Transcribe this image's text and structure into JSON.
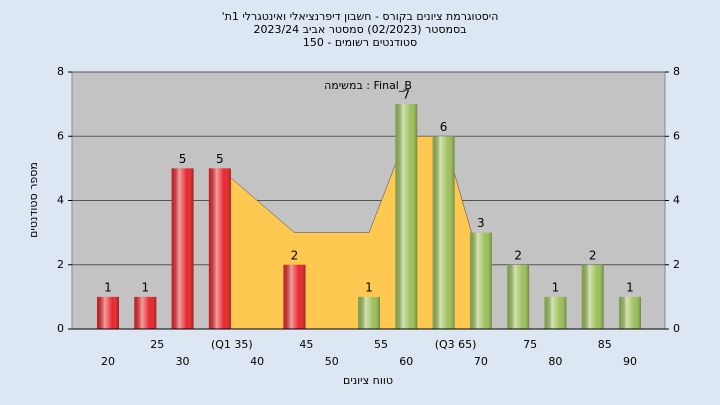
{
  "chart_data": {
    "type": "bar",
    "title": [
      "'היסטוגרמת ציונים בקורס - חשבון דיפרנציאלי ואינטגרלי 1ת",
      "בסמסטר  (02/2023)  סמסטר אביב 2023/24",
      "סטודנטים רשומים - 150"
    ],
    "annotation": "במשימה : Final_B",
    "x_label": "טווח ציונים",
    "y_label": "מספר סטודנטים",
    "categories": [
      "20",
      "25",
      "30",
      "(Q1 35)",
      "40",
      "45",
      "50",
      "55",
      "60",
      "(Q3 65)",
      "70",
      "75",
      "80",
      "85",
      "90"
    ],
    "values": [
      1,
      1,
      5,
      5,
      0,
      2,
      0,
      1,
      7,
      6,
      3,
      2,
      1,
      2,
      1
    ],
    "colors": [
      "#e8262b",
      "#e8262b",
      "#e8262b",
      "#e8262b",
      "#e8262b",
      "#e8262b",
      "#9dc05a",
      "#9dc05a",
      "#9dc05a",
      "#9dc05a",
      "#9dc05a",
      "#9dc05a",
      "#9dc05a",
      "#9dc05a",
      "#9dc05a"
    ],
    "area": {
      "color": "#ffc850",
      "values": [
        null,
        null,
        null,
        5,
        4,
        3,
        3,
        3,
        6,
        6,
        2,
        null,
        null,
        null,
        null
      ]
    },
    "ylim": [
      0,
      8
    ],
    "yticks": [
      0,
      2,
      4,
      6,
      8
    ],
    "grid": true
  }
}
